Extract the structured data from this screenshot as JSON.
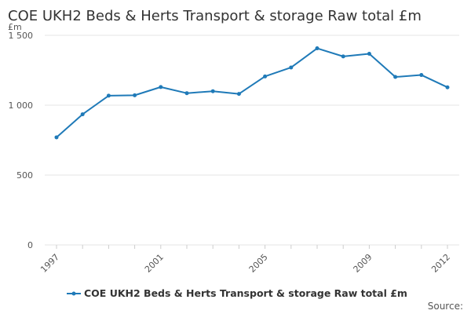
{
  "chart_data": {
    "type": "line",
    "title": "COE UKH2 Beds & Herts Transport & storage Raw total £m",
    "ylabel": "£m",
    "xlabel": "",
    "x": [
      1997,
      1998,
      1999,
      2000,
      2001,
      2002,
      2003,
      2004,
      2005,
      2006,
      2007,
      2008,
      2009,
      2010,
      2011,
      2012
    ],
    "x_tick_labels": [
      "1997",
      "2001",
      "2005",
      "2009",
      "2012"
    ],
    "y_tick_labels": [
      "0",
      "500",
      "1 000",
      "1 500"
    ],
    "y_ticks": [
      0,
      500,
      1000,
      1500
    ],
    "ylim": [
      0,
      1500
    ],
    "series": [
      {
        "name": "COE UKH2 Beds & Herts Transport & storage Raw total £m",
        "values": [
          770,
          935,
          1068,
          1071,
          1130,
          1086,
          1100,
          1081,
          1206,
          1270,
          1407,
          1349,
          1368,
          1202,
          1216,
          1128
        ],
        "color": "#1f7ab8"
      }
    ],
    "grid": true,
    "legend_position": "bottom",
    "source_label": "Source:"
  }
}
